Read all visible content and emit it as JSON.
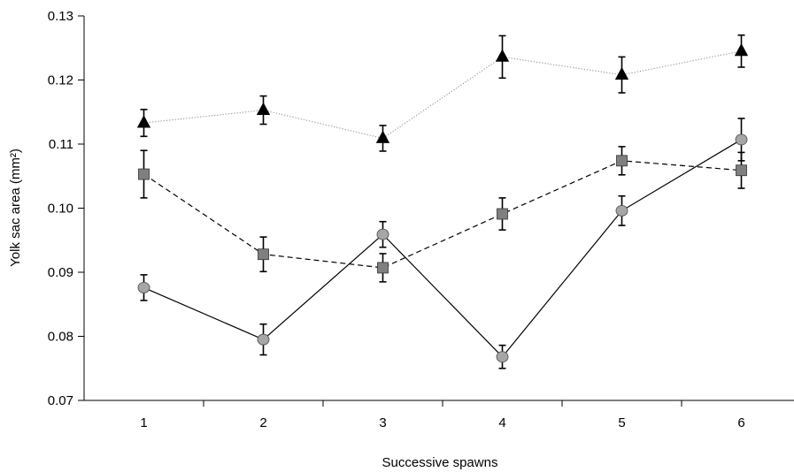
{
  "chart_data": {
    "type": "line",
    "xlabel": "Successive spawns",
    "ylabel": "Yolk sac area (mm²)",
    "x": [
      1,
      2,
      3,
      4,
      5,
      6
    ],
    "x_tick_labels": [
      "1",
      "2",
      "3",
      "4",
      "5",
      "6"
    ],
    "xlim": [
      0.5,
      6.5
    ],
    "ylim": [
      0.07,
      0.13
    ],
    "y_tick_labels": [
      "0.07",
      "0.08",
      "0.09",
      "0.10",
      "0.11",
      "0.12",
      "0.13"
    ],
    "grid": false,
    "series": [
      {
        "marker": "triangle",
        "line_style": "dotted",
        "color": "#000000",
        "line_color": "#999999",
        "values": [
          0.1133,
          0.1153,
          0.1109,
          0.1236,
          0.1208,
          0.1245
        ],
        "error": [
          0.0021,
          0.0022,
          0.002,
          0.0033,
          0.0028,
          0.0025
        ]
      },
      {
        "marker": "square",
        "line_style": "dashed",
        "color": "#7f7f7f",
        "line_color": "#000000",
        "values": [
          0.1053,
          0.0928,
          0.0907,
          0.0991,
          0.1074,
          0.1059
        ],
        "error": [
          0.0037,
          0.0027,
          0.0022,
          0.0025,
          0.0022,
          0.0028
        ]
      },
      {
        "marker": "circle",
        "line_style": "solid",
        "color": "#a6a6a6",
        "line_color": "#000000",
        "values": [
          0.0876,
          0.0795,
          0.0959,
          0.0768,
          0.0996,
          0.1107
        ],
        "error": [
          0.002,
          0.0024,
          0.002,
          0.0018,
          0.0023,
          0.0033
        ]
      }
    ]
  }
}
